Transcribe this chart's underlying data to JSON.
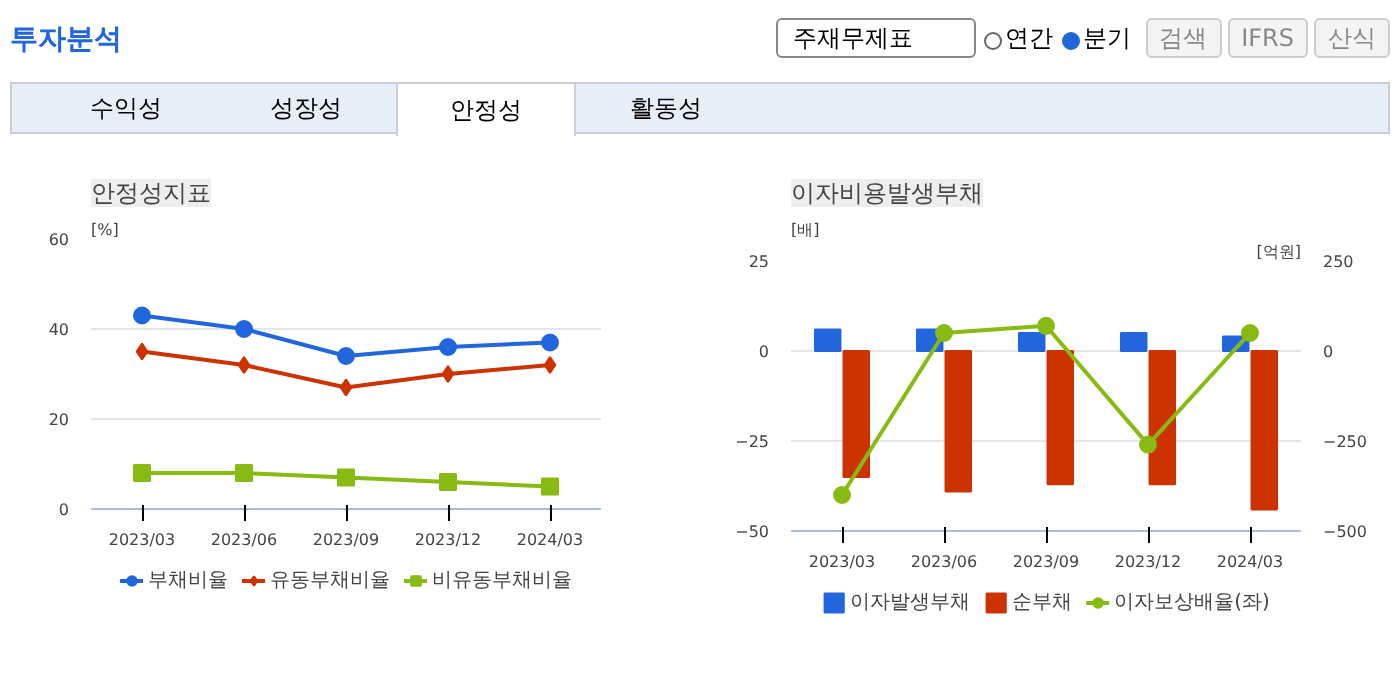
{
  "chart_data": [
    {
      "type": "other",
      "title": "투자분석",
      "annotations": [
        "주재무제표",
        "연간",
        "분기",
        "검색",
        "IFRS",
        "산식",
        "수익성",
        "성장성",
        "안정성",
        "활동성"
      ]
    },
    {
      "type": "line",
      "title": "안정성지표",
      "ylabel": "[%]",
      "categories": [
        "2023/03",
        "2023/06",
        "2023/09",
        "2023/12",
        "2024/03"
      ],
      "ylim": [
        0,
        60
      ],
      "yticks": [
        0,
        20,
        40,
        60
      ],
      "grid": "y",
      "legend": "bottom",
      "series": [
        {
          "name": "부채비율",
          "color": "#2266dd",
          "marker": "circle",
          "values": [
            43,
            40,
            34,
            36,
            37
          ]
        },
        {
          "name": "유동부채비율",
          "color": "#cc3300",
          "marker": "diamond",
          "values": [
            35,
            32,
            27,
            30,
            32
          ]
        },
        {
          "name": "비유동부채비율",
          "color": "#88bb11",
          "marker": "square",
          "values": [
            8,
            8,
            7,
            6,
            5
          ]
        }
      ]
    },
    {
      "type": "bar",
      "title": "이자비용발생부채",
      "ylabel": "[배]",
      "y2label": "[억원]",
      "categories": [
        "2023/03",
        "2023/06",
        "2023/09",
        "2023/12",
        "2024/03"
      ],
      "ylim": [
        -50,
        25
      ],
      "yticks": [
        -50,
        -25,
        0,
        25
      ],
      "y2lim": [
        -500,
        250
      ],
      "y2ticks": [
        -500,
        -250,
        0,
        250
      ],
      "grid": "y",
      "legend": "bottom",
      "series": [
        {
          "name": "이자발생부채",
          "color": "#2266dd",
          "axis": "y2",
          "values": [
            60,
            60,
            50,
            50,
            40
          ]
        },
        {
          "name": "순부채",
          "color": "#cc3300",
          "axis": "y2",
          "values": [
            -350,
            -390,
            -370,
            -370,
            -440
          ]
        },
        {
          "name": "이자보상배율(좌)",
          "type": "line",
          "marker": "circle",
          "color": "#88bb11",
          "values": [
            -40,
            5,
            7,
            -26,
            5
          ]
        }
      ]
    }
  ]
}
